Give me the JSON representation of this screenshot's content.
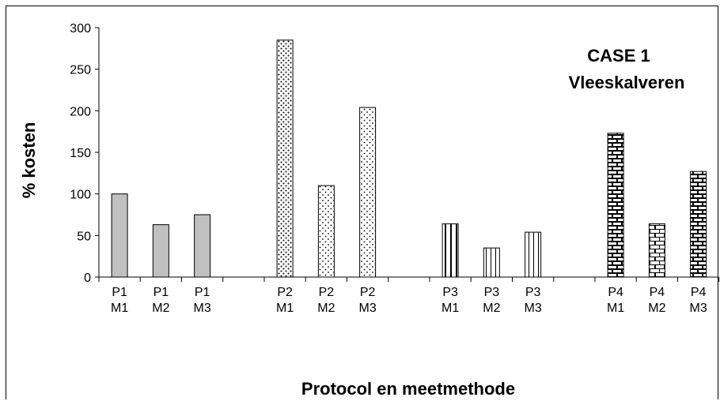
{
  "chart_data": {
    "type": "bar",
    "title": "",
    "xlabel": "Protocol en meetmethode",
    "ylabel": "% kosten",
    "ylim": [
      0,
      300
    ],
    "yticks": [
      0,
      50,
      100,
      150,
      200,
      250,
      300
    ],
    "grid": false,
    "legend": "none",
    "annotations": [
      "CASE 1",
      "Vleeskalveren"
    ],
    "groups": [
      {
        "name": "P1",
        "pattern": "solid-gray",
        "bars": [
          {
            "label": [
              "P1",
              "M1"
            ],
            "value": 100
          },
          {
            "label": [
              "P1",
              "M2"
            ],
            "value": 63
          },
          {
            "label": [
              "P1",
              "M3"
            ],
            "value": 75
          }
        ]
      },
      {
        "name": "P2",
        "pattern": "dots",
        "bars": [
          {
            "label": [
              "P2",
              "M1"
            ],
            "value": 285
          },
          {
            "label": [
              "P2",
              "M2"
            ],
            "value": 110
          },
          {
            "label": [
              "P2",
              "M3"
            ],
            "value": 204
          }
        ]
      },
      {
        "name": "P3",
        "pattern": "vertical-lines",
        "bars": [
          {
            "label": [
              "P3",
              "M1"
            ],
            "value": 64
          },
          {
            "label": [
              "P3",
              "M2"
            ],
            "value": 35
          },
          {
            "label": [
              "P3",
              "M3"
            ],
            "value": 54
          }
        ]
      },
      {
        "name": "P4",
        "pattern": "bricks",
        "bars": [
          {
            "label": [
              "P4",
              "M1"
            ],
            "value": 173
          },
          {
            "label": [
              "P4",
              "M2"
            ],
            "value": 64
          },
          {
            "label": [
              "P4",
              "M3"
            ],
            "value": 127
          }
        ]
      }
    ],
    "colors": {
      "solid_gray": "#c0c0c0",
      "axis": "#000000",
      "background": "#ffffff"
    }
  }
}
